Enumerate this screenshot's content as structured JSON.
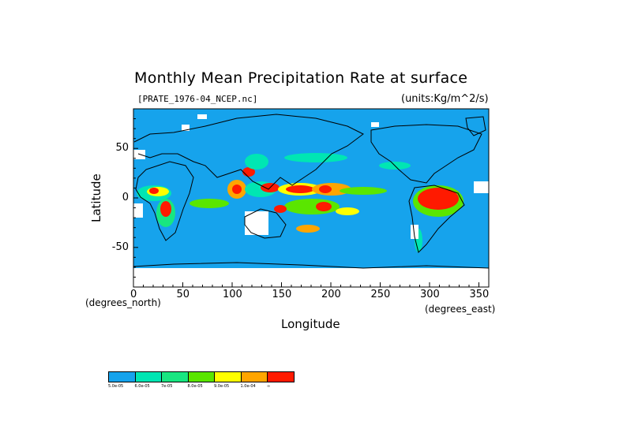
{
  "figure": {
    "title": "Monthly Mean Precipitation Rate at surface",
    "file_label": "[PRATE_1976-04_NCEP.nc]",
    "units_label": "(units:Kg/m^2/s)",
    "xlabel": "Longitude",
    "ylabel": "Latitude",
    "x_unit_note": "(degrees_east)",
    "y_unit_note": "(degrees_north)"
  },
  "map": {
    "projection": "cylindrical",
    "xlim": [
      0,
      360
    ],
    "ylim": [
      -90,
      90
    ],
    "x_ticks": [
      "0",
      "50",
      "100",
      "150",
      "200",
      "250",
      "300",
      "350"
    ],
    "y_ticks": [
      "50",
      "0",
      "-50"
    ],
    "background_color": "#16a3ec",
    "missing_color": "#ffffff",
    "coastline_color": "#000000"
  },
  "legend": {
    "colors": [
      "#16a3ec",
      "#00e6b3",
      "#18e681",
      "#5ae600",
      "#ffff00",
      "#ffa500",
      "#ff1a00"
    ],
    "labels": [
      "5.0e-05",
      "6.0e-05",
      "7e-05",
      "8.0e-05",
      "9.0e-05",
      "1.0e-04",
      "∞"
    ]
  }
}
